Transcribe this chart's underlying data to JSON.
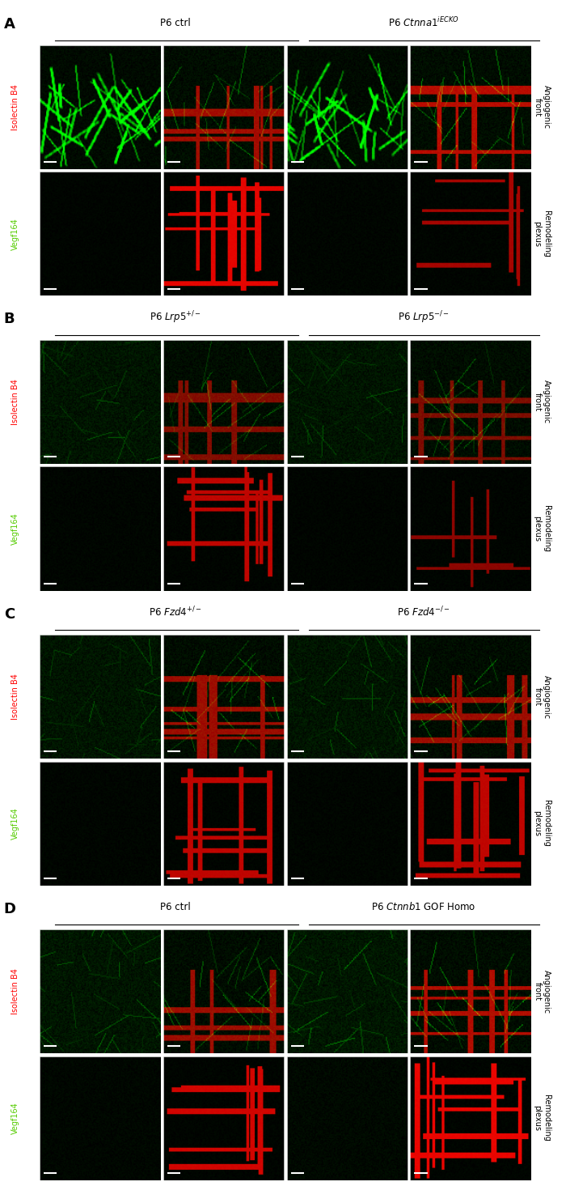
{
  "fig_width": 7.0,
  "fig_height": 14.65,
  "dpi": 100,
  "background_color": "#ffffff",
  "panels": [
    {
      "label": "A",
      "title_left": "P6 ctrl",
      "title_right": "P6 $Ctnna1^{iECKO}$",
      "n_cols": 4,
      "n_rows": 2,
      "row_labels": [
        "Isolectin B4",
        "Vegf164"
      ],
      "row_label_colors": [
        "red",
        "#55cc00"
      ],
      "side_labels": [
        "Angiogenic\nfront",
        "Remodeling\nplexus"
      ]
    },
    {
      "label": "B",
      "title_left": "P6 $Lrp5^{+/-}$",
      "title_right": "P6 $Lrp5^{-/-}$",
      "n_cols": 4,
      "n_rows": 2,
      "row_labels": [
        "Isolectin B4",
        "Vegf164"
      ],
      "row_label_colors": [
        "red",
        "#55cc00"
      ],
      "side_labels": [
        "Angiogenic\nfront",
        "Remodeling\nplexus"
      ]
    },
    {
      "label": "C",
      "title_left": "P6 $Fzd4^{+/-}$",
      "title_right": "P6 $Fzd4^{-/-}$",
      "n_cols": 4,
      "n_rows": 2,
      "row_labels": [
        "Isolectin B4",
        "Vegf164"
      ],
      "row_label_colors": [
        "red",
        "#55cc00"
      ],
      "side_labels": [
        "Angiogenic\nfront",
        "Remodeling\nplexus"
      ]
    },
    {
      "label": "D",
      "title_left": "P6 ctrl",
      "title_right": "P6 $Ctnnb1$ GOF Homo",
      "n_cols": 4,
      "n_rows": 2,
      "row_labels": [
        "Isolectin B4",
        "Vegf164"
      ],
      "row_label_colors": [
        "red",
        "#55cc00"
      ],
      "side_labels": [
        "Angiogenic\nfront",
        "Remodeling\nplexus"
      ]
    }
  ],
  "image_specs": {
    "A_r1c1": {
      "type": "green_fiber",
      "brightness": 0.55,
      "seed": 1
    },
    "A_r1c2": {
      "type": "green_red_mixed",
      "brightness": 0.75,
      "seed": 2
    },
    "A_r1c3": {
      "type": "green_fiber",
      "brightness": 0.5,
      "seed": 3
    },
    "A_r1c4": {
      "type": "green_red_mixed",
      "brightness": 0.85,
      "seed": 4
    },
    "A_r2c1": {
      "type": "dark_green",
      "brightness": 0.15,
      "seed": 5
    },
    "A_r2c2": {
      "type": "red_vessel_dense",
      "brightness": 0.9,
      "seed": 6
    },
    "A_r2c3": {
      "type": "dark_green",
      "brightness": 0.18,
      "seed": 7
    },
    "A_r2c4": {
      "type": "red_vessel_sparse",
      "brightness": 0.65,
      "seed": 8
    },
    "B_r1c1": {
      "type": "green_fiber_dark",
      "brightness": 0.4,
      "seed": 11
    },
    "B_r1c2": {
      "type": "green_red_mixed",
      "brightness": 0.6,
      "seed": 12
    },
    "B_r1c3": {
      "type": "green_fiber_dark",
      "brightness": 0.38,
      "seed": 13
    },
    "B_r1c4": {
      "type": "green_red_mixed",
      "brightness": 0.58,
      "seed": 14
    },
    "B_r2c1": {
      "type": "dark_green",
      "brightness": 0.18,
      "seed": 15
    },
    "B_r2c2": {
      "type": "red_vessel_dense",
      "brightness": 0.75,
      "seed": 16
    },
    "B_r2c3": {
      "type": "dark_green",
      "brightness": 0.16,
      "seed": 17
    },
    "B_r2c4": {
      "type": "red_vessel_sparse",
      "brightness": 0.55,
      "seed": 18
    },
    "C_r1c1": {
      "type": "green_fiber_dark",
      "brightness": 0.42,
      "seed": 21
    },
    "C_r1c2": {
      "type": "green_red_mixed",
      "brightness": 0.72,
      "seed": 22
    },
    "C_r1c3": {
      "type": "green_fiber_dark",
      "brightness": 0.42,
      "seed": 23
    },
    "C_r1c4": {
      "type": "green_red_mixed",
      "brightness": 0.72,
      "seed": 24
    },
    "C_r2c1": {
      "type": "dark_green",
      "brightness": 0.18,
      "seed": 25
    },
    "C_r2c2": {
      "type": "red_vessel_dense",
      "brightness": 0.75,
      "seed": 26
    },
    "C_r2c3": {
      "type": "dark_green",
      "brightness": 0.18,
      "seed": 27
    },
    "C_r2c4": {
      "type": "red_vessel_dense",
      "brightness": 0.75,
      "seed": 28
    },
    "D_r1c1": {
      "type": "green_fiber_dark",
      "brightness": 0.48,
      "seed": 31
    },
    "D_r1c2": {
      "type": "green_red_mixed",
      "brightness": 0.72,
      "seed": 32
    },
    "D_r1c3": {
      "type": "green_fiber_dark",
      "brightness": 0.55,
      "seed": 33
    },
    "D_r1c4": {
      "type": "green_red_mixed",
      "brightness": 0.82,
      "seed": 34
    },
    "D_r2c1": {
      "type": "dark_green",
      "brightness": 0.22,
      "seed": 35
    },
    "D_r2c2": {
      "type": "red_vessel_dense",
      "brightness": 0.82,
      "seed": 36
    },
    "D_r2c3": {
      "type": "dark_green",
      "brightness": 0.28,
      "seed": 37
    },
    "D_r2c4": {
      "type": "red_vessel_dense",
      "brightness": 0.92,
      "seed": 38
    }
  }
}
